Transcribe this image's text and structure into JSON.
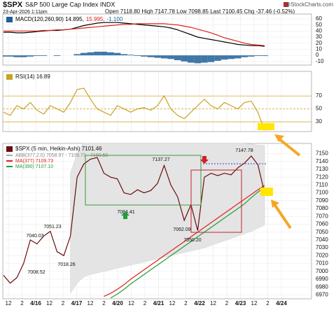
{
  "header": {
    "symbol": "$SPX",
    "name": "S&P 500 Large Cap Index INDX",
    "date": "23-Apr-2026 1:11pm",
    "quote": "Open 7118.80 High 7147.78 Low 7098.85 Last 7100.45 Chg -37.46 (-0.52%)",
    "source": "@StockCharts.com"
  },
  "x_axis": {
    "labels": [
      "12",
      "2",
      "4/16",
      "12",
      "2",
      "4/17",
      "12",
      "2",
      "4/20",
      "12",
      "2",
      "4/21",
      "12",
      "2",
      "4/22",
      "12",
      "2",
      "4/23",
      "12",
      "2",
      "4/24"
    ]
  },
  "chart_data": [
    {
      "type": "line",
      "label_parts": [
        "MACD(120,260,90) 14.895,",
        "15.995,",
        "-1.100"
      ],
      "ylim": [
        -16,
        68
      ],
      "yticks": [
        60,
        50,
        40,
        30,
        20,
        10,
        0,
        -10
      ],
      "series": [
        {
          "color": "#000000",
          "values": [
            38,
            38,
            37,
            37,
            38,
            39,
            40,
            41,
            41,
            42,
            43,
            46,
            49,
            51,
            53,
            54,
            54,
            54,
            53,
            52,
            51,
            50,
            49,
            48,
            47,
            45,
            42,
            38,
            34,
            30,
            28,
            26,
            24,
            22,
            20,
            18,
            17,
            16,
            16,
            14.895
          ]
        },
        {
          "color": "#e0211d",
          "values": [
            40,
            40,
            40,
            40,
            40,
            40,
            41,
            41,
            42,
            42,
            43,
            44,
            45,
            46,
            47,
            48,
            49,
            50,
            51,
            51,
            52,
            52,
            52,
            52,
            52,
            51,
            50,
            48,
            46,
            43,
            40,
            37,
            33,
            29,
            26,
            23,
            20,
            18,
            17,
            15.995
          ]
        },
        {
          "color": "#1f5f9a",
          "kind": "bar",
          "values": [
            -2,
            -2,
            -3,
            -3,
            -2,
            -1,
            -1,
            0,
            -1,
            0,
            0,
            2,
            4,
            5,
            6,
            6,
            5,
            4,
            2,
            1,
            -1,
            -2,
            -3,
            -4,
            -5,
            -6,
            -8,
            -10,
            -12,
            -13,
            -12,
            -11,
            -9,
            -7,
            -6,
            -5,
            -3,
            -2,
            -1,
            -1.1
          ]
        }
      ]
    },
    {
      "type": "line",
      "label_parts": [
        "RSI(14) 16.89"
      ],
      "ylim": [
        15,
        108
      ],
      "yticks": [
        70,
        50,
        30
      ],
      "series": [
        {
          "color": "#c9a227",
          "values": [
            45,
            40,
            55,
            50,
            60,
            48,
            42,
            55,
            50,
            45,
            60,
            80,
            82,
            65,
            50,
            45,
            40,
            55,
            50,
            45,
            50,
            52,
            48,
            55,
            70,
            50,
            40,
            35,
            45,
            55,
            65,
            55,
            50,
            60,
            55,
            50,
            60,
            62,
            45,
            16.89
          ]
        }
      ]
    },
    {
      "type": "line",
      "label_parts": [
        "$SPX (5 min, Heikin-Ashi) 7101.46"
      ],
      "ylim": [
        6965,
        7163
      ],
      "yticks": [
        7150,
        7140,
        7130,
        7120,
        7110,
        7100,
        7090,
        7080,
        7070,
        7060,
        7050,
        7040,
        7030,
        7020,
        7010,
        7000,
        6990,
        6980,
        6970
      ],
      "annotations": [
        "7147.78",
        "7137.27",
        "7084.41",
        "7062.09",
        "7050.20",
        "7051.23",
        "7040.03",
        "7018.26",
        "7008.52"
      ],
      "series": [
        {
          "name": "ABB(377,2.0) 7058.97 - 7109.73 - 7160.50",
          "color": "#e4e4e4",
          "kind": "band",
          "upper": [
            null,
            null,
            null,
            null,
            null,
            null,
            null,
            null,
            null,
            null,
            7125,
            7150,
            7165,
            7166,
            7167,
            7168,
            7168,
            7168,
            7168,
            7168,
            7168,
            7168,
            7168,
            7168,
            7168,
            7168,
            7168,
            7168,
            7167,
            7167,
            7166,
            7166,
            7165,
            7165,
            7164,
            7164,
            7163,
            7162,
            7161,
            7160.5
          ],
          "lower": [
            null,
            null,
            null,
            null,
            null,
            null,
            null,
            null,
            null,
            null,
            6972,
            6985,
            6993,
            6996,
            6998,
            7000,
            7002,
            7004,
            7006,
            7008,
            7010,
            7012,
            7014,
            7016,
            7018,
            7020,
            7022,
            7024,
            7026,
            7028,
            7030,
            7033,
            7036,
            7039,
            7042,
            7045,
            7048,
            7051,
            7055,
            7058.97
          ]
        },
        {
          "name": "MA(377) 7109.73",
          "color": "#e0211d",
          "values": [
            null,
            null,
            null,
            null,
            null,
            null,
            null,
            null,
            null,
            null,
            null,
            null,
            null,
            null,
            null,
            6968,
            6972,
            6977,
            6983,
            6990,
            6996,
            7002,
            7008,
            7014,
            7020,
            7026,
            7032,
            7038,
            7044,
            7050,
            7056,
            7062,
            7068,
            7074,
            7080,
            7086,
            7092,
            7098,
            7104,
            7109.73
          ]
        },
        {
          "name": "MA(390) 7107.10",
          "color": "#1e9e3a",
          "values": [
            null,
            null,
            null,
            null,
            null,
            null,
            null,
            null,
            null,
            null,
            null,
            null,
            null,
            null,
            null,
            null,
            6966,
            6971,
            6977,
            6984,
            6990,
            6996,
            7002,
            7008,
            7014,
            7020,
            7026,
            7032,
            7038,
            7044,
            7050,
            7056,
            7062,
            7068,
            7074,
            7080,
            7086,
            7094,
            7101,
            7107.1
          ]
        },
        {
          "color": "#6b0d0d",
          "values": [
            6995,
            6985,
            6992,
            7010,
            7040,
            7035,
            7045,
            7051,
            7025,
            7020,
            7045,
            7120,
            7137,
            7143,
            7145,
            7125,
            7120,
            7118,
            7100,
            7098,
            7104,
            7100,
            7103,
            7112,
            7135,
            7110,
            7095,
            7065,
            7085,
            7052,
            7120,
            7125,
            7122,
            7125,
            7123,
            7132,
            7138,
            7147,
            7136,
            7100
          ]
        }
      ]
    }
  ]
}
